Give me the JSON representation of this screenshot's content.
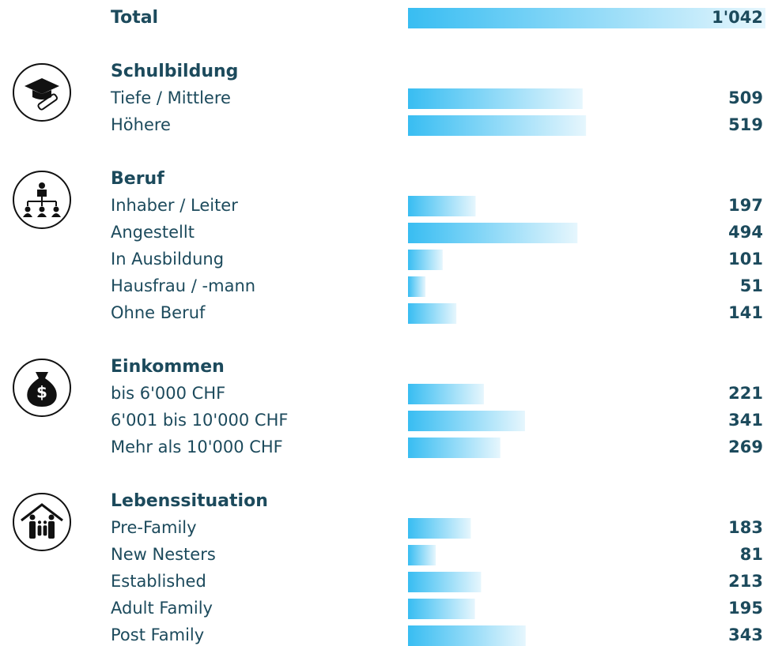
{
  "chart_data": {
    "type": "bar",
    "total_label": "Total",
    "total_value": 1042,
    "total_value_label": "1'042",
    "groups": [
      {
        "name": "Schulbildung",
        "categories": [
          "Tiefe / Mittlere",
          "Höhere"
        ],
        "values": [
          509,
          519
        ]
      },
      {
        "name": "Beruf",
        "categories": [
          "Inhaber / Leiter",
          "Angestellt",
          "In Ausbildung",
          "Hausfrau / -mann",
          "Ohne Beruf"
        ],
        "values": [
          197,
          494,
          101,
          51,
          141
        ]
      },
      {
        "name": "Einkommen",
        "categories": [
          "bis 6'000 CHF",
          "6'001 bis 10'000 CHF",
          "Mehr als 10'000 CHF"
        ],
        "values": [
          221,
          341,
          269
        ]
      },
      {
        "name": "Lebenssituation",
        "categories": [
          "Pre-Family",
          "New Nesters",
          "Established",
          "Adult Family",
          "Post Family"
        ],
        "values": [
          183,
          81,
          213,
          195,
          343
        ]
      }
    ],
    "xlim": [
      0,
      1042
    ],
    "color": "#38bdf2",
    "gradient_end": "#e6f6fd"
  }
}
